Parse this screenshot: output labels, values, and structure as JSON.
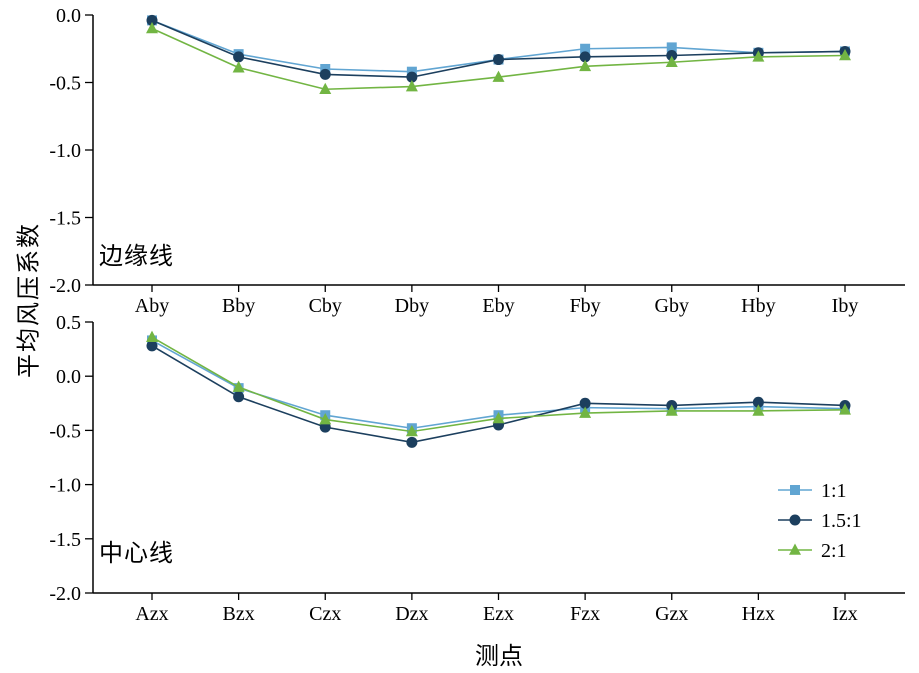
{
  "ylabel": "平均风压系数",
  "xlabel": "测点",
  "colors": {
    "series_1_1": "#61A5D2",
    "series_1_5_1": "#1C3F5E",
    "series_2_1": "#72B543",
    "axis": "#000000"
  },
  "legend": {
    "position": "bottom-right-inside-second-panel",
    "entries": [
      "1:1",
      "1.5:1",
      "2:1"
    ]
  },
  "chart_data": [
    {
      "type": "line",
      "panel_label": "边缘线",
      "categories": [
        "Aby",
        "Bby",
        "Cby",
        "Dby",
        "Eby",
        "Fby",
        "Gby",
        "Hby",
        "Iby"
      ],
      "ylim": [
        -2.0,
        0.0
      ],
      "yticks": [
        0.0,
        -0.5,
        -1.0,
        -1.5,
        -2.0
      ],
      "grid": false,
      "legend_visible": false,
      "series": [
        {
          "name": "1:1",
          "marker": "square",
          "color": "#61A5D2",
          "values": [
            -0.04,
            -0.29,
            -0.4,
            -0.42,
            -0.33,
            -0.25,
            -0.24,
            -0.28,
            -0.27
          ]
        },
        {
          "name": "1.5:1",
          "marker": "circle",
          "color": "#1C3F5E",
          "values": [
            -0.04,
            -0.31,
            -0.44,
            -0.46,
            -0.33,
            -0.31,
            -0.3,
            -0.28,
            -0.27
          ]
        },
        {
          "name": "2:1",
          "marker": "triangle",
          "color": "#72B543",
          "values": [
            -0.1,
            -0.39,
            -0.55,
            -0.53,
            -0.46,
            -0.38,
            -0.35,
            -0.31,
            -0.3
          ]
        }
      ]
    },
    {
      "type": "line",
      "panel_label": "中心线",
      "categories": [
        "Azx",
        "Bzx",
        "Czx",
        "Dzx",
        "Ezx",
        "Fzx",
        "Gzx",
        "Hzx",
        "Izx"
      ],
      "ylim": [
        -2.0,
        0.5
      ],
      "yticks": [
        0.5,
        0.0,
        -0.5,
        -1.0,
        -1.5,
        -2.0
      ],
      "grid": false,
      "legend_visible": true,
      "series": [
        {
          "name": "1:1",
          "marker": "square",
          "color": "#61A5D2",
          "values": [
            0.33,
            -0.11,
            -0.36,
            -0.48,
            -0.36,
            -0.29,
            -0.3,
            -0.28,
            -0.3
          ]
        },
        {
          "name": "1.5:1",
          "marker": "circle",
          "color": "#1C3F5E",
          "values": [
            0.28,
            -0.19,
            -0.47,
            -0.61,
            -0.45,
            -0.25,
            -0.27,
            -0.24,
            -0.27
          ]
        },
        {
          "name": "2:1",
          "marker": "triangle",
          "color": "#72B543",
          "values": [
            0.36,
            -0.1,
            -0.4,
            -0.51,
            -0.39,
            -0.34,
            -0.32,
            -0.32,
            -0.31
          ]
        }
      ]
    }
  ]
}
